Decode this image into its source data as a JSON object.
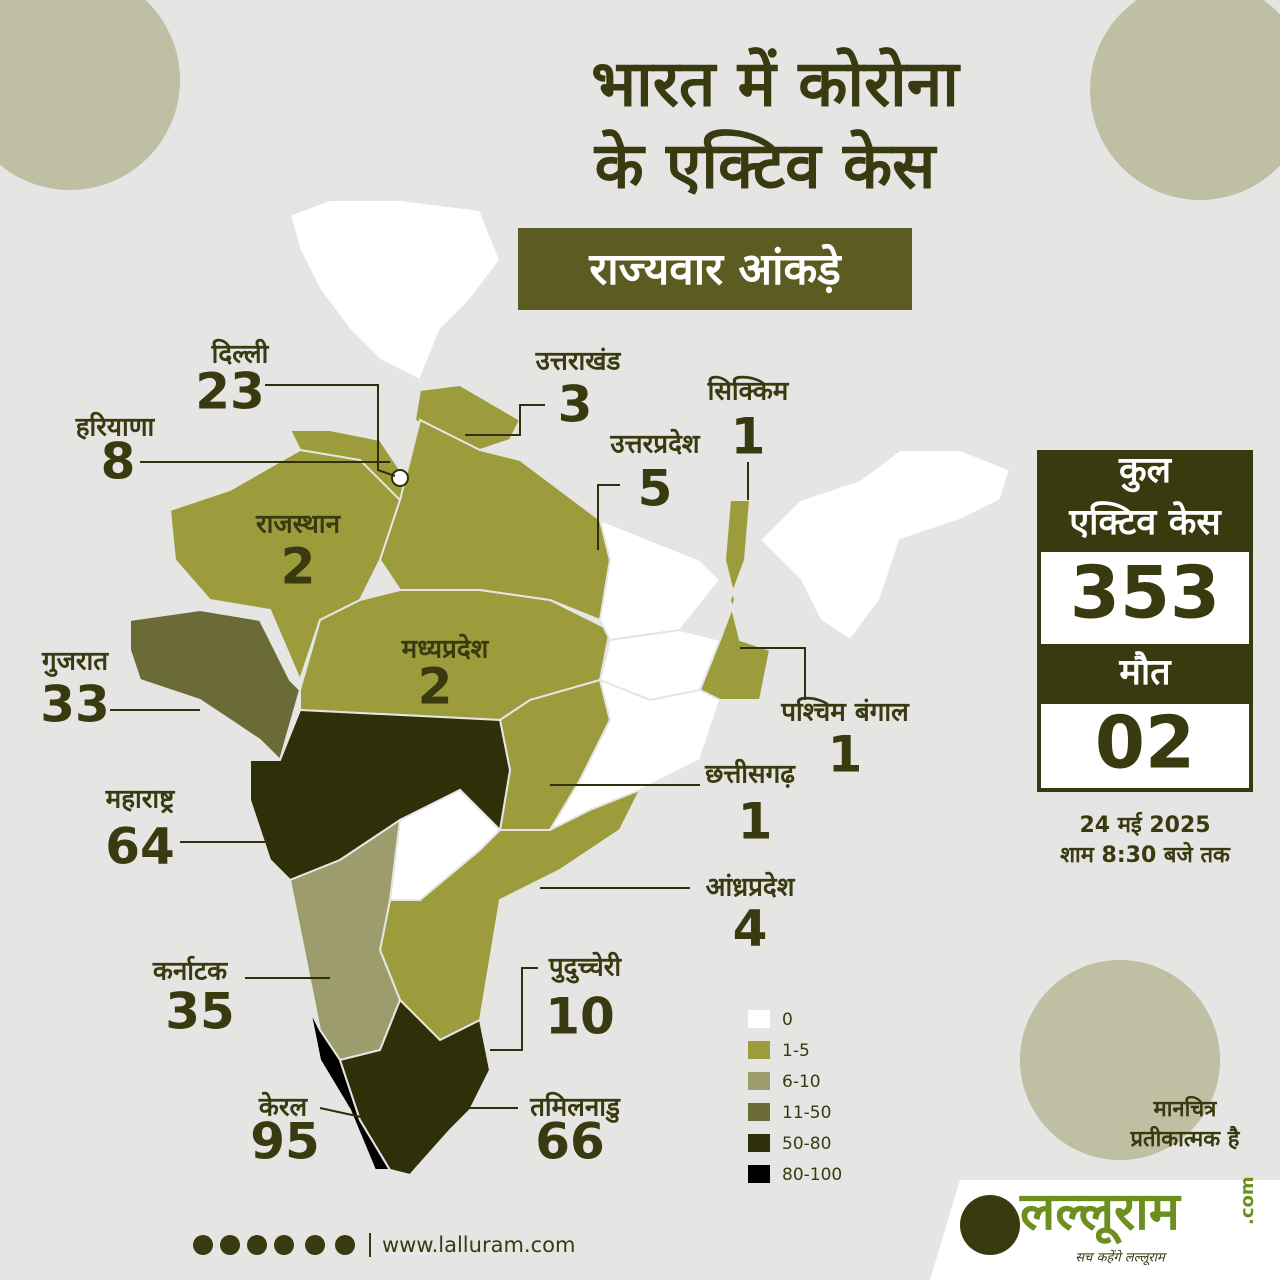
{
  "header": {
    "title_lines": [
      "भारत में कोरोना",
      "के एक्टिव केस"
    ],
    "subtitle": "राज्यवार आंकड़े"
  },
  "states": [
    {
      "name": "दिल्ली",
      "value": 23
    },
    {
      "name": "हरियाणा",
      "value": 8
    },
    {
      "name": "उत्तराखंड",
      "value": 3
    },
    {
      "name": "सिक्किम",
      "value": 1
    },
    {
      "name": "उत्तरप्रदेश",
      "value": 5
    },
    {
      "name": "राजस्थान",
      "value": 2
    },
    {
      "name": "गुजरात",
      "value": 33
    },
    {
      "name": "मध्यप्रदेश",
      "value": 2
    },
    {
      "name": "पश्चिम बंगाल",
      "value": 1
    },
    {
      "name": "छत्तीसगढ़",
      "value": 1
    },
    {
      "name": "महाराष्ट्र",
      "value": 64
    },
    {
      "name": "आंध्रप्रदेश",
      "value": 4
    },
    {
      "name": "कर्नाटक",
      "value": 35
    },
    {
      "name": "पुदुच्चेरी",
      "value": 10
    },
    {
      "name": "केरल",
      "value": 95
    },
    {
      "name": "तमिलनाडु",
      "value": 66
    }
  ],
  "summary": {
    "total_label_lines": [
      "कुल",
      "एक्टिव केस"
    ],
    "total": 353,
    "death_label": "मौत",
    "deaths": "02",
    "date": "24 मई 2025",
    "time": "शाम 8:30 बजे तक"
  },
  "legend": [
    {
      "label": "0",
      "color": "#ffffff"
    },
    {
      "label": "1-5",
      "color": "#9c9c3c"
    },
    {
      "label": "6-10",
      "color": "#9c9c6c"
    },
    {
      "label": "11-50",
      "color": "#6b6b38"
    },
    {
      "label": "50-80",
      "color": "#2f2f0a"
    },
    {
      "label": "80-100",
      "color": "#000000"
    }
  ],
  "note_lines": [
    "मानचित्र",
    "प्रतीकात्मक है"
  ],
  "footer": {
    "website": "www.lalluram.com",
    "brand": "लल्लूराम",
    ".com": ".com",
    "brand_suffix": ".com",
    "tagline": "सच कहेंगे लल्लूराम"
  }
}
